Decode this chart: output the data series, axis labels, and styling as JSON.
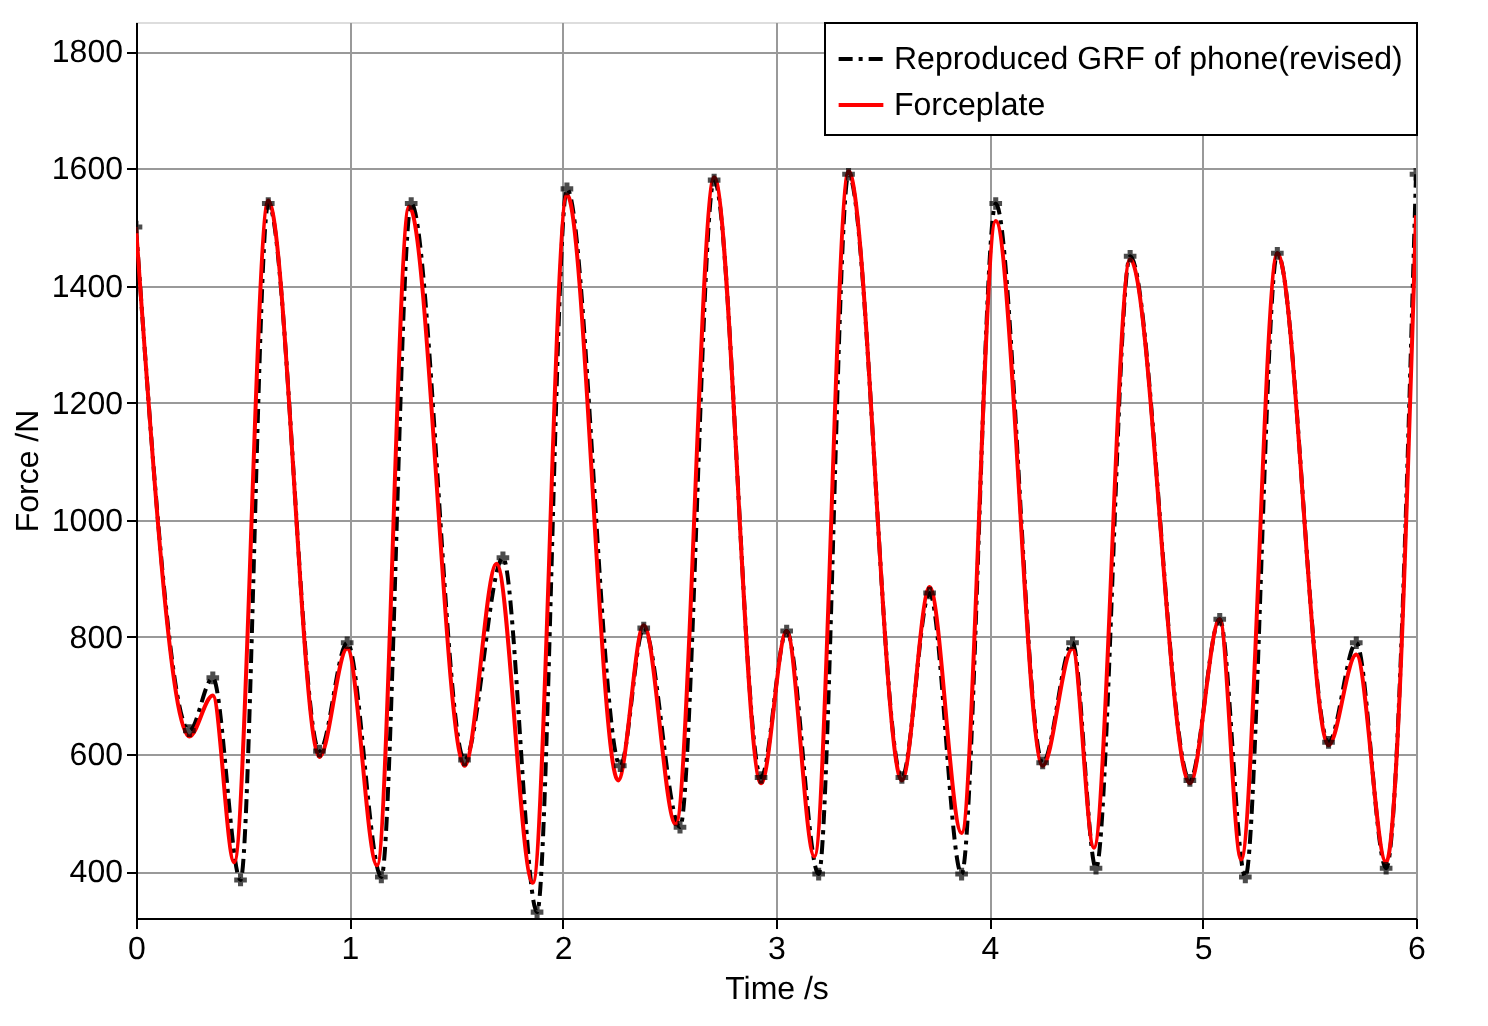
{
  "chart_data": {
    "type": "line",
    "xlabel": "Time /s",
    "ylabel": "Force /N",
    "xlim": [
      0,
      6
    ],
    "xticks": [
      0,
      1,
      2,
      3,
      4,
      5,
      6
    ],
    "ylim": [
      320,
      1850
    ],
    "yticks": [
      400,
      600,
      800,
      1000,
      1200,
      1400,
      1600,
      1800
    ],
    "grid": true,
    "legend": "top right",
    "series": [
      {
        "name": "Reproduced GRF of phone(revised)",
        "color": "#000000",
        "marker": "cross",
        "line_style": "dashed",
        "x": [
          0,
          0.25,
          0.36,
          0.49,
          0.62,
          0.86,
          0.99,
          1.15,
          1.29,
          1.54,
          1.72,
          1.88,
          2.02,
          2.27,
          2.38,
          2.55,
          2.71,
          2.93,
          3.05,
          3.2,
          3.34,
          3.59,
          3.72,
          3.87,
          4.03,
          4.25,
          4.39,
          4.5,
          4.66,
          4.94,
          5.08,
          5.2,
          5.35,
          5.59,
          5.72,
          5.86,
          6.0
        ],
        "values": [
          1500,
          640,
          730,
          385,
          1540,
          605,
          790,
          390,
          1540,
          590,
          935,
          330,
          1565,
          580,
          815,
          475,
          1580,
          560,
          810,
          395,
          1590,
          560,
          875,
          395,
          1540,
          585,
          790,
          405,
          1450,
          555,
          830,
          390,
          1455,
          620,
          790,
          405,
          1590
        ]
      },
      {
        "name": "Forceplate",
        "color": "#ff0000",
        "marker": "none",
        "line_style": "solid",
        "x": [
          0,
          0.25,
          0.36,
          0.46,
          0.62,
          0.86,
          0.99,
          1.13,
          1.28,
          1.54,
          1.69,
          1.86,
          2.02,
          2.26,
          2.38,
          2.53,
          2.71,
          2.93,
          3.05,
          3.18,
          3.34,
          3.59,
          3.72,
          3.87,
          4.03,
          4.25,
          4.39,
          4.49,
          4.66,
          4.94,
          5.08,
          5.18,
          5.35,
          5.59,
          5.72,
          5.86,
          6.0
        ],
        "values": [
          1500,
          630,
          700,
          415,
          1545,
          595,
          780,
          410,
          1535,
          580,
          925,
          380,
          1555,
          555,
          820,
          480,
          1585,
          550,
          810,
          425,
          1595,
          555,
          885,
          465,
          1510,
          580,
          780,
          440,
          1445,
          550,
          830,
          420,
          1455,
          615,
          770,
          415,
          1520
        ]
      }
    ]
  }
}
